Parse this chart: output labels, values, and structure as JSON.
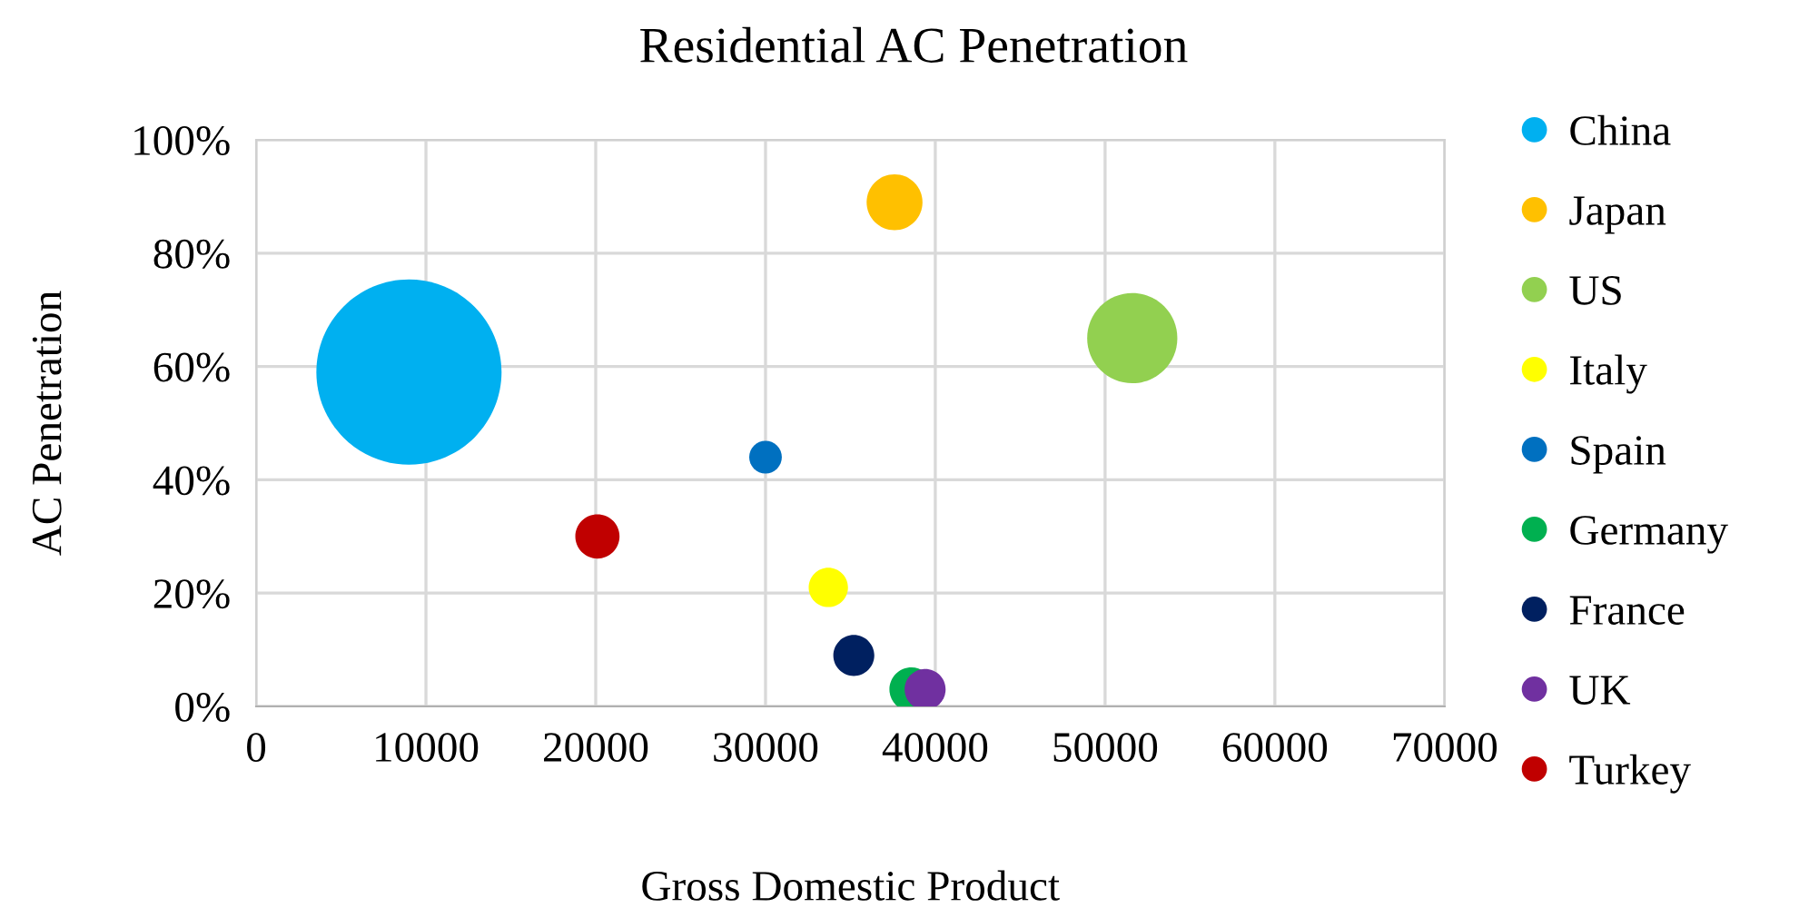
{
  "chart_data": {
    "type": "bubble",
    "title": "Residential AC Penetration",
    "xlabel": "Gross Domestic Product",
    "ylabel": "AC Penetration",
    "xlim": [
      0,
      70000
    ],
    "xticks": [
      0,
      10000,
      20000,
      30000,
      40000,
      50000,
      60000,
      70000
    ],
    "ylim": [
      0,
      100
    ],
    "yticks": [
      {
        "value": 0,
        "label": "0%"
      },
      {
        "value": 20,
        "label": "20%"
      },
      {
        "value": 40,
        "label": "40%"
      },
      {
        "value": 60,
        "label": "60%"
      },
      {
        "value": 80,
        "label": "80%"
      },
      {
        "value": 100,
        "label": "100%"
      }
    ],
    "grid": true,
    "legend": "right",
    "marker": "circle",
    "series": [
      {
        "name": "China",
        "color": "#00b0f0",
        "x": [
          9000
        ],
        "values": [
          59
        ],
        "sizes": [
          1
        ]
      },
      {
        "name": "Japan",
        "color": "#ffc000",
        "x": [
          37600
        ],
        "values": [
          89
        ],
        "sizes": [
          0.091
        ]
      },
      {
        "name": "US",
        "color": "#92d050",
        "x": [
          51600
        ],
        "values": [
          65
        ],
        "sizes": [
          0.237
        ]
      },
      {
        "name": "Italy",
        "color": "#ffff00",
        "x": [
          33700
        ],
        "values": [
          21
        ],
        "sizes": [
          0.045
        ]
      },
      {
        "name": "Spain",
        "color": "#0070c0",
        "x": [
          30000
        ],
        "values": [
          44
        ],
        "sizes": [
          0.031
        ]
      },
      {
        "name": "Germany",
        "color": "#00b050",
        "x": [
          38600
        ],
        "values": [
          3
        ],
        "sizes": [
          0.057
        ]
      },
      {
        "name": "France",
        "color": "#002060",
        "x": [
          35200
        ],
        "values": [
          9
        ],
        "sizes": [
          0.049
        ]
      },
      {
        "name": "UK",
        "color": "#7030a0",
        "x": [
          39400
        ],
        "values": [
          3
        ],
        "sizes": [
          0.049
        ]
      },
      {
        "name": "Turkey",
        "color": "#c00000",
        "x": [
          20100
        ],
        "values": [
          30
        ],
        "sizes": [
          0.057
        ]
      }
    ]
  }
}
